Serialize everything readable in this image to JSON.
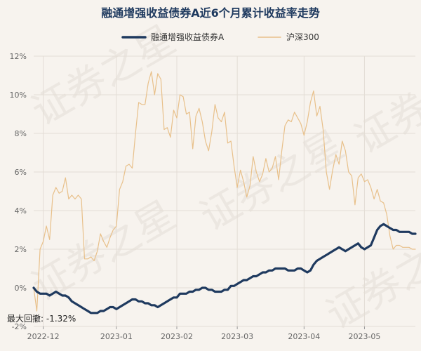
{
  "chart_data": {
    "type": "line",
    "title": "融通增强收益债券A近6个月累计收益率走势",
    "legend_position": "top-center",
    "grid": true,
    "xlabel": "",
    "ylabel": "",
    "ylim": [
      -2,
      12
    ],
    "y_unit": "%",
    "yticks": [
      "-2%",
      "0%",
      "2%",
      "4%",
      "6%",
      "8%",
      "10%",
      "12%"
    ],
    "xticks": [
      "2022-12",
      "2023-01",
      "2023-02",
      "2023-03",
      "2023-04",
      "2023-05"
    ],
    "annotation": "最大回撤: -1.32%",
    "watermark": "证券之星",
    "series": [
      {
        "name": "融通增强收益债券A",
        "color": "#1f3a5f",
        "values": [
          0.0,
          -0.2,
          -0.3,
          -0.3,
          -0.3,
          -0.4,
          -0.3,
          -0.2,
          -0.3,
          -0.4,
          -0.4,
          -0.5,
          -0.7,
          -0.8,
          -0.9,
          -1.0,
          -1.1,
          -1.2,
          -1.3,
          -1.3,
          -1.3,
          -1.2,
          -1.2,
          -1.1,
          -1.0,
          -1.0,
          -1.1,
          -1.0,
          -0.9,
          -0.8,
          -0.7,
          -0.6,
          -0.6,
          -0.7,
          -0.7,
          -0.8,
          -0.8,
          -0.9,
          -0.9,
          -1.0,
          -0.9,
          -0.8,
          -0.7,
          -0.6,
          -0.5,
          -0.5,
          -0.3,
          -0.3,
          -0.3,
          -0.2,
          -0.2,
          -0.1,
          -0.1,
          0.0,
          0.0,
          -0.1,
          -0.1,
          -0.2,
          -0.2,
          -0.2,
          -0.1,
          -0.1,
          0.1,
          0.1,
          0.2,
          0.3,
          0.4,
          0.4,
          0.5,
          0.6,
          0.6,
          0.7,
          0.8,
          0.8,
          0.9,
          0.9,
          1.0,
          1.0,
          1.0,
          1.0,
          0.9,
          0.9,
          0.9,
          1.0,
          1.0,
          0.9,
          0.8,
          0.9,
          1.2,
          1.4,
          1.5,
          1.6,
          1.7,
          1.8,
          1.9,
          2.0,
          2.1,
          2.0,
          1.9,
          2.0,
          2.1,
          2.2,
          2.3,
          2.1,
          2.0,
          2.1,
          2.2,
          2.6,
          3.0,
          3.2,
          3.3,
          3.2,
          3.1,
          3.0,
          3.0,
          2.9,
          2.9,
          2.9,
          2.9,
          2.8,
          2.8
        ]
      },
      {
        "name": "沪深300",
        "color": "#e8c08a",
        "values": [
          0.0,
          -1.2,
          2.0,
          2.4,
          3.2,
          2.5,
          4.8,
          5.2,
          4.9,
          5.0,
          5.7,
          4.6,
          4.8,
          4.6,
          4.8,
          4.6,
          1.5,
          1.5,
          1.6,
          1.4,
          1.9,
          2.8,
          2.4,
          2.1,
          2.6,
          3.0,
          3.2,
          5.1,
          5.5,
          6.3,
          6.4,
          6.2,
          8.0,
          9.6,
          9.5,
          9.5,
          10.6,
          11.2,
          10.0,
          11.1,
          10.8,
          8.2,
          8.3,
          7.8,
          9.2,
          8.8,
          10.0,
          9.9,
          9.0,
          9.1,
          7.2,
          8.9,
          9.3,
          8.6,
          7.6,
          7.1,
          8.1,
          9.5,
          8.8,
          8.6,
          9.1,
          7.5,
          7.6,
          6.3,
          5.2,
          6.1,
          5.5,
          4.7,
          5.3,
          6.8,
          6.0,
          5.5,
          5.9,
          6.7,
          6.0,
          6.2,
          6.8,
          5.6,
          7.1,
          8.4,
          8.7,
          8.6,
          9.1,
          8.8,
          8.5,
          7.9,
          8.6,
          9.6,
          10.2,
          8.9,
          9.4,
          8.2,
          6.0,
          5.1,
          6.1,
          6.9,
          6.4,
          7.6,
          7.1,
          6.0,
          5.8,
          4.3,
          5.7,
          5.9,
          5.5,
          5.6,
          5.2,
          4.6,
          5.1,
          4.5,
          4.4,
          3.8,
          2.7,
          2.0,
          2.2,
          2.2,
          2.1,
          2.1,
          2.1,
          2.0,
          2.0
        ]
      }
    ]
  }
}
